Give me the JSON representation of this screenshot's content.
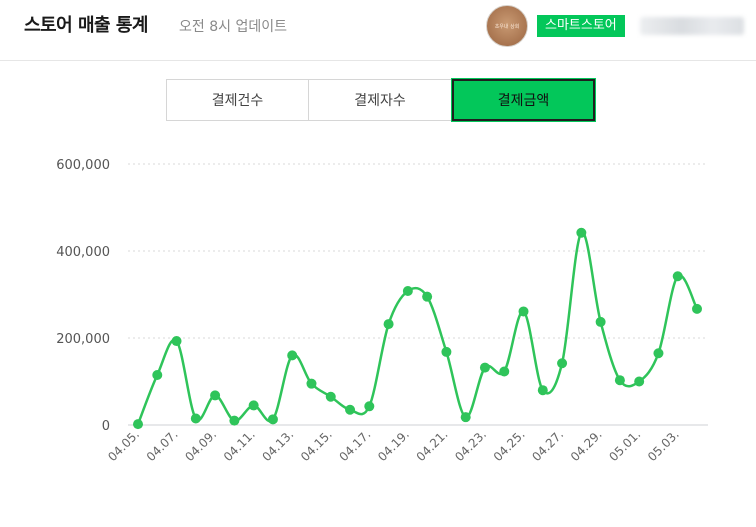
{
  "header": {
    "title": "스토어 매출 통계",
    "update_text": "오전 8시 업데이트",
    "avatar_text": "초우내 상회",
    "store_badge": "스마트스토어"
  },
  "tabs": [
    {
      "label": "결제건수",
      "active": false
    },
    {
      "label": "결제자수",
      "active": false
    },
    {
      "label": "결제금액",
      "active": true
    }
  ],
  "colors": {
    "accent": "#03c75a",
    "line": "#2fc45a"
  },
  "chart_data": {
    "type": "line",
    "smooth": true,
    "grid": true,
    "ylim": [
      0,
      600000
    ],
    "yticks": [
      "600,000",
      "400,000",
      "200,000",
      "0"
    ],
    "ytick_values": [
      600000,
      400000,
      200000,
      0
    ],
    "x": [
      "04.05.",
      "04.06.",
      "04.07.",
      "04.08.",
      "04.09.",
      "04.10.",
      "04.11.",
      "04.12.",
      "04.13.",
      "04.14.",
      "04.15.",
      "04.16.",
      "04.17.",
      "04.18.",
      "04.19.",
      "04.20.",
      "04.21.",
      "04.22.",
      "04.23.",
      "04.24.",
      "04.25.",
      "04.26.",
      "04.27.",
      "04.28.",
      "04.29.",
      "04.30.",
      "05.01.",
      "05.02.",
      "05.03.",
      "05.04."
    ],
    "xtick_labels": [
      "04.05.",
      "04.07.",
      "04.09.",
      "04.11.",
      "04.13.",
      "04.15.",
      "04.17.",
      "04.19.",
      "04.21.",
      "04.23.",
      "04.25.",
      "04.27.",
      "04.29.",
      "05.01.",
      "05.03."
    ],
    "values": [
      2000,
      115000,
      193000,
      15000,
      68000,
      10000,
      45000,
      13000,
      160000,
      95000,
      65000,
      35000,
      43000,
      232000,
      308000,
      295000,
      168000,
      18000,
      132000,
      123000,
      261000,
      80000,
      142000,
      442000,
      237000,
      103000,
      100000,
      165000,
      342000,
      267000
    ]
  }
}
